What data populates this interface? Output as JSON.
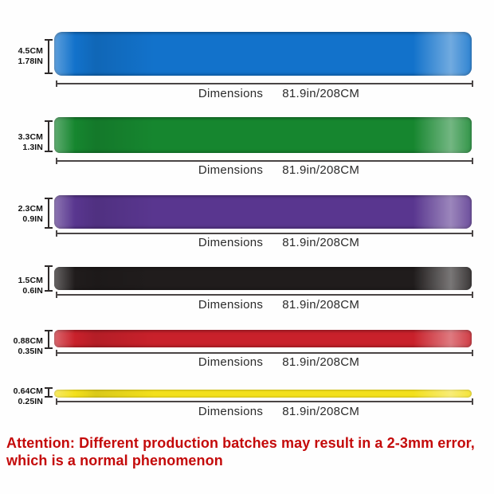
{
  "bands": [
    {
      "color_name": "blue",
      "color": "#1272cb",
      "width_cm": "4.5CM",
      "width_in": "1.78IN",
      "dim_label": "Dimensions",
      "dim_value": "81.9in/208CM"
    },
    {
      "color_name": "green",
      "color": "#16862f",
      "width_cm": "3.3CM",
      "width_in": "1.3IN",
      "dim_label": "Dimensions",
      "dim_value": "81.9in/208CM"
    },
    {
      "color_name": "purple",
      "color": "#59368f",
      "width_cm": "2.3CM",
      "width_in": "0.9IN",
      "dim_label": "Dimensions",
      "dim_value": "81.9in/208CM"
    },
    {
      "color_name": "black",
      "color": "#201c1c",
      "width_cm": "1.5CM",
      "width_in": "0.6IN",
      "dim_label": "Dimensions",
      "dim_value": "81.9in/208CM"
    },
    {
      "color_name": "red",
      "color": "#c9212b",
      "width_cm": "0.88CM",
      "width_in": "0.35IN",
      "dim_label": "Dimensions",
      "dim_value": "81.9in/208CM"
    },
    {
      "color_name": "yellow",
      "color": "#f3e01c",
      "width_cm": "0.64CM",
      "width_in": "0.25IN",
      "dim_label": "Dimensions",
      "dim_value": "81.9in/208CM"
    }
  ],
  "attention": {
    "color": "#c40a0a",
    "line1": "Attention: Different production batches may result in a 2-3mm error,",
    "line2": "which is a normal phenomenon"
  }
}
